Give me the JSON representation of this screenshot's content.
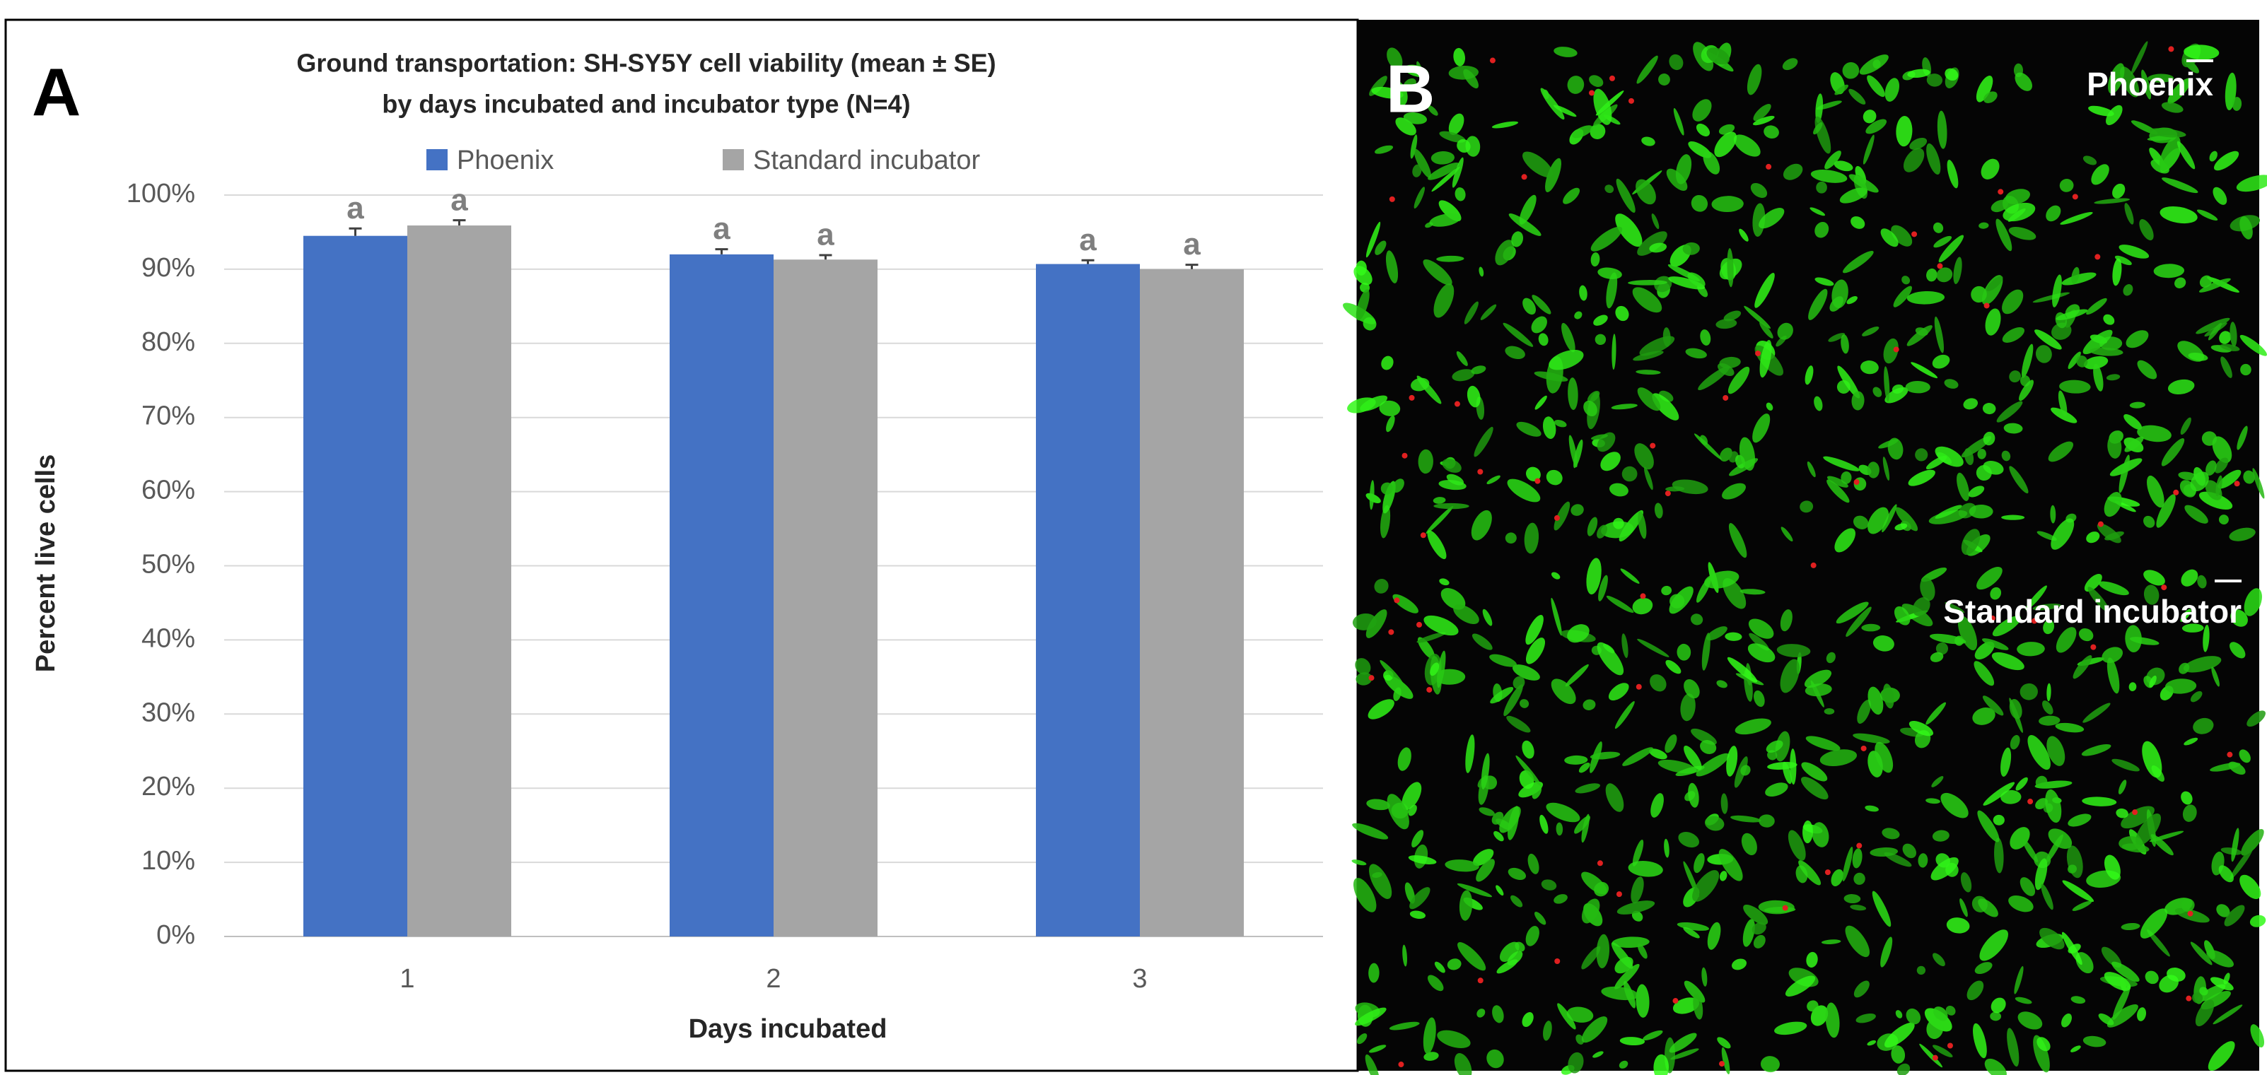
{
  "chart_data": {
    "type": "bar",
    "title": "Ground transportation: SH-SY5Y cell viability (mean ± SE)",
    "subtitle": "by days incubated and incubator type (N=4)",
    "xlabel": "Days incubated",
    "ylabel": "Percent live cells",
    "categories": [
      "1",
      "2",
      "3"
    ],
    "series": [
      {
        "name": "Phoenix",
        "color": "#4472c4",
        "values": [
          94.5,
          92.0,
          90.7
        ],
        "errors": [
          1.0,
          0.7,
          0.5
        ],
        "annotations": [
          "a",
          "a",
          "a"
        ]
      },
      {
        "name": "Standard incubator",
        "color": "#a5a5a5",
        "values": [
          95.9,
          91.3,
          90.0
        ],
        "errors": [
          0.7,
          0.6,
          0.6
        ],
        "annotations": [
          "a",
          "a",
          "a"
        ]
      }
    ],
    "ylim": [
      0,
      100
    ],
    "yticks": [
      {
        "value": 0,
        "label": "0%"
      },
      {
        "value": 10,
        "label": "10%"
      },
      {
        "value": 20,
        "label": "20%"
      },
      {
        "value": 30,
        "label": "30%"
      },
      {
        "value": 40,
        "label": "40%"
      },
      {
        "value": 50,
        "label": "50%"
      },
      {
        "value": 60,
        "label": "60%"
      },
      {
        "value": 70,
        "label": "70%"
      },
      {
        "value": 80,
        "label": "80%"
      },
      {
        "value": 90,
        "label": "90%"
      },
      {
        "value": 100,
        "label": "100%"
      }
    ],
    "grid": true,
    "legend": "top"
  },
  "panels": {
    "chart_label": "A",
    "image_label": "B"
  },
  "images": [
    {
      "label": "Phoenix"
    },
    {
      "label": "Standard incubator"
    }
  ]
}
